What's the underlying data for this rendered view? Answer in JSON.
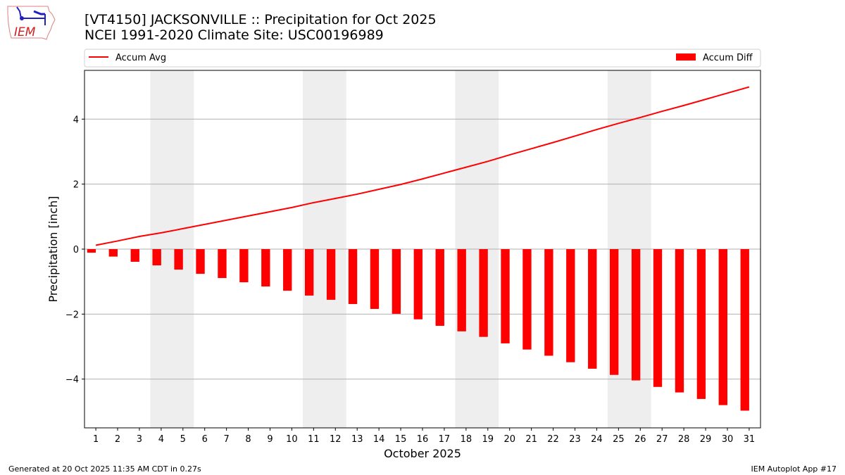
{
  "header": {
    "title": "[VT4150] JACKSONVILLE :: Precipitation for Oct 2025",
    "subtitle": "NCEI 1991-2020 Climate Site: USC00196989",
    "logo_text": "IEM"
  },
  "footer": {
    "left": "Generated at 20 Oct 2025 11:35 AM CDT in 0.27s",
    "right": "IEM Autoplot App #17"
  },
  "colors": {
    "line": "#ff0000",
    "bar": "#ff0000",
    "weekend_shade": "#eeeeee",
    "grid": "#b0b0b0"
  },
  "chart_data": {
    "type": "bar",
    "xlabel": "October 2025",
    "ylabel": "Precipitation [inch]",
    "xlim": [
      0.48,
      31.52
    ],
    "ylim": [
      -5.5,
      5.5
    ],
    "yticks": [
      -4,
      -2,
      0,
      2,
      4
    ],
    "ytick_labels": [
      "−4",
      "−2",
      "0",
      "2",
      "4"
    ],
    "grid": "horizontal",
    "legend_placement": "top, above plot",
    "weekend_shading": [
      [
        4,
        5
      ],
      [
        11,
        12
      ],
      [
        18,
        19
      ],
      [
        25,
        26
      ]
    ],
    "x": [
      1,
      2,
      3,
      4,
      5,
      6,
      7,
      8,
      9,
      10,
      11,
      12,
      13,
      14,
      15,
      16,
      17,
      18,
      19,
      20,
      21,
      22,
      23,
      24,
      25,
      26,
      27,
      28,
      29,
      30,
      31
    ],
    "series": [
      {
        "name": "Accum Avg",
        "kind": "line",
        "values": [
          0.12,
          0.25,
          0.39,
          0.5,
          0.63,
          0.76,
          0.89,
          1.02,
          1.15,
          1.28,
          1.43,
          1.56,
          1.69,
          1.84,
          1.99,
          2.16,
          2.34,
          2.52,
          2.7,
          2.9,
          3.09,
          3.28,
          3.48,
          3.68,
          3.87,
          4.05,
          4.24,
          4.42,
          4.61,
          4.8,
          4.99
        ]
      },
      {
        "name": "Accum Diff",
        "kind": "bar",
        "values": [
          -0.11,
          -0.23,
          -0.39,
          -0.5,
          -0.63,
          -0.76,
          -0.89,
          -1.02,
          -1.15,
          -1.28,
          -1.43,
          -1.56,
          -1.69,
          -1.84,
          -1.99,
          -2.16,
          -2.36,
          -2.53,
          -2.7,
          -2.9,
          -3.09,
          -3.28,
          -3.48,
          -3.68,
          -3.87,
          -4.04,
          -4.24,
          -4.41,
          -4.61,
          -4.8,
          -4.97
        ]
      }
    ]
  }
}
